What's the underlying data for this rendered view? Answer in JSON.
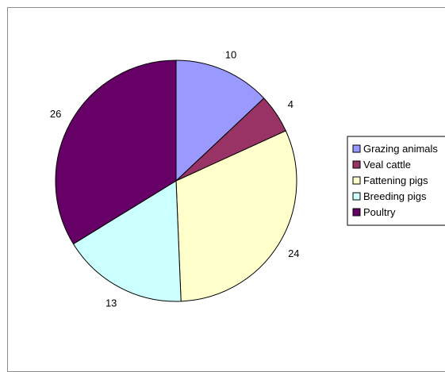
{
  "chart_data": {
    "type": "pie",
    "title": "",
    "legend_position": "right",
    "start_angle_deg": 0,
    "direction": "clockwise",
    "slices": [
      {
        "label": "Grazing animals",
        "value": 10,
        "color": "#9999ff"
      },
      {
        "label": "Veal cattle",
        "value": 4,
        "color": "#993366"
      },
      {
        "label": "Fattening pigs",
        "value": 24,
        "color": "#ffffcc"
      },
      {
        "label": "Breeding pigs",
        "value": 13,
        "color": "#ccffff"
      },
      {
        "label": "Poultry",
        "value": 26,
        "color": "#660066"
      }
    ]
  }
}
